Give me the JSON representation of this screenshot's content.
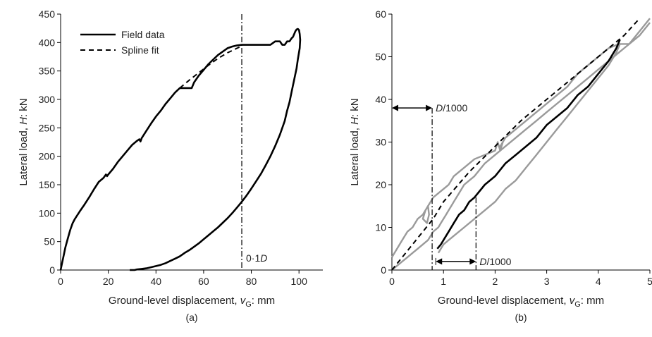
{
  "chart_data": [
    {
      "type": "line",
      "panel_label": "(a)",
      "xlabel_main": "Ground-level displacement, ",
      "xlabel_var": "v",
      "xlabel_sub": "G",
      "xlabel_unit": ": mm",
      "ylabel_main": "Lateral load, ",
      "ylabel_var": "H",
      "ylabel_unit": ": kN",
      "xlim": [
        0,
        110
      ],
      "ylim": [
        0,
        450
      ],
      "xticks": [
        "0",
        "20",
        "40",
        "60",
        "80",
        "100"
      ],
      "yticks": [
        "0",
        "50",
        "100",
        "150",
        "200",
        "250",
        "300",
        "350",
        "400",
        "450"
      ],
      "legend": {
        "placement": "top-left",
        "entries": [
          "Field data",
          "Spline fit"
        ]
      },
      "vline": {
        "x": 76,
        "label_main": "0·1",
        "label_var": "D"
      },
      "series": [
        {
          "name": "Field data",
          "style": "solid",
          "x": [
            0,
            0.5,
            1,
            1.5,
            2,
            3,
            4,
            5,
            6,
            8,
            10,
            12,
            14,
            16,
            18,
            19,
            19.5,
            20,
            22,
            24,
            26,
            28,
            30,
            32,
            33,
            33.5,
            34,
            36,
            38,
            40,
            42,
            44,
            46,
            48,
            50,
            52,
            54,
            55,
            56,
            58,
            60,
            62,
            64,
            66,
            68,
            70,
            72,
            74,
            76,
            78,
            80,
            82,
            84,
            86,
            88,
            90,
            92,
            93,
            94,
            95,
            96,
            96.5,
            97,
            97.5,
            98,
            98.5,
            99,
            99.5,
            100,
            100.3,
            100.5,
            100.3,
            99.5,
            99,
            98,
            97,
            96,
            95,
            94,
            92,
            90,
            88,
            86,
            84,
            82,
            80,
            78,
            76,
            74,
            72,
            70,
            68,
            66,
            64,
            62,
            60,
            58,
            56,
            54,
            52,
            50,
            48,
            46,
            44,
            42,
            40,
            38,
            36,
            34,
            32,
            31,
            30,
            29
          ],
          "y": [
            0,
            10,
            20,
            30,
            40,
            55,
            70,
            82,
            90,
            103,
            115,
            128,
            142,
            155,
            162,
            168,
            165,
            168,
            178,
            190,
            200,
            210,
            220,
            227,
            230,
            226,
            232,
            245,
            258,
            270,
            280,
            292,
            302,
            312,
            320,
            320,
            320,
            320,
            330,
            342,
            352,
            362,
            370,
            378,
            384,
            390,
            393,
            395,
            396,
            396,
            396,
            396,
            396,
            396,
            396,
            402,
            402,
            396,
            396,
            402,
            402,
            405,
            408,
            410,
            415,
            420,
            423,
            424,
            422,
            415,
            405,
            390,
            370,
            355,
            335,
            315,
            295,
            280,
            262,
            238,
            218,
            200,
            184,
            169,
            156,
            143,
            131,
            120,
            110,
            100,
            91,
            83,
            75,
            68,
            61,
            54,
            47,
            41,
            35,
            30,
            24,
            20,
            16,
            12,
            9,
            7,
            5,
            3,
            2,
            1,
            0,
            0,
            0
          ]
        },
        {
          "name": "Spline fit",
          "style": "dashed",
          "x": [
            50,
            54,
            58,
            62,
            66,
            70,
            74,
            76
          ],
          "y": [
            320,
            334,
            347,
            360,
            372,
            382,
            390,
            394
          ]
        }
      ]
    },
    {
      "type": "line",
      "panel_label": "(b)",
      "xlabel_main": "Ground-level displacement, ",
      "xlabel_var": "v",
      "xlabel_sub": "G",
      "xlabel_unit": ": mm",
      "ylabel_main": "Lateral load, ",
      "ylabel_var": "H",
      "ylabel_unit": ": kN",
      "xlim": [
        0,
        5
      ],
      "ylim": [
        0,
        60
      ],
      "xticks": [
        "0",
        "1",
        "2",
        "3",
        "4",
        "5"
      ],
      "yticks": [
        "0",
        "10",
        "20",
        "30",
        "40",
        "50",
        "60"
      ],
      "annotations": [
        {
          "var": "D",
          "text": "/1000",
          "from_x": 0,
          "to_x": 0.78,
          "y": 38
        },
        {
          "var": "D",
          "text": "/1000",
          "from_x": 0.85,
          "to_x": 1.63,
          "y": 2
        }
      ],
      "vlines": [
        {
          "x": 0.78,
          "y_top": 38
        },
        {
          "x": 1.63,
          "y_top": 17
        }
      ],
      "series": [
        {
          "style": "gray",
          "x": [
            0,
            0.1,
            0.2,
            0.3,
            0.4,
            0.5,
            0.6,
            0.65,
            0.7,
            0.72,
            0.68,
            0.6,
            0.65,
            0.7,
            0.75,
            0.8,
            0.9,
            1.0,
            1.1,
            1.2,
            1.4,
            1.6,
            1.8,
            2.0,
            2.05,
            2.1,
            2.15,
            2.1,
            2.2,
            2.4,
            2.6,
            2.8,
            3.0,
            3.2,
            3.4,
            3.6,
            3.8,
            4.0,
            4.2,
            4.4,
            4.6,
            4.8,
            5.0
          ],
          "y": [
            3,
            5,
            7,
            9,
            10,
            12,
            13,
            14,
            15,
            13,
            11,
            12,
            14,
            15,
            16,
            17,
            18,
            19,
            20,
            22,
            24,
            26,
            27,
            28,
            30,
            28,
            30,
            29,
            31,
            33,
            35,
            37,
            39,
            41,
            43,
            46,
            48,
            50,
            52,
            53,
            53,
            56,
            59
          ]
        },
        {
          "style": "gray",
          "x": [
            0,
            0.1,
            0.2,
            0.3,
            0.4,
            0.5,
            0.6,
            0.7,
            0.75,
            0.8,
            0.9,
            0.95,
            1.0,
            1.05,
            1.1,
            1.15,
            1.2,
            1.3,
            1.4,
            1.6,
            1.8,
            2.0,
            2.2,
            2.4,
            2.6,
            2.8,
            3.0,
            3.2,
            3.4,
            3.6,
            3.8,
            4.0,
            4.2,
            4.4,
            4.6,
            4.8,
            5.0
          ],
          "y": [
            0,
            1,
            2,
            3,
            4,
            5,
            6,
            7,
            8,
            9,
            10,
            11,
            12,
            13,
            14,
            15,
            16,
            18,
            20,
            22,
            25,
            27,
            29,
            31,
            33,
            35,
            37,
            39,
            41,
            43,
            45,
            47,
            49,
            51,
            53,
            55,
            58
          ]
        },
        {
          "style": "gray",
          "x": [
            4.42,
            4.35,
            4.2,
            4.0,
            3.8,
            3.6,
            3.4,
            3.2,
            3.0,
            2.8,
            2.6,
            2.4,
            2.2,
            2.0,
            1.8,
            1.6,
            1.4,
            1.2,
            1.1,
            1.0,
            0.95,
            0.9
          ],
          "y": [
            53,
            51,
            48,
            45,
            42,
            39,
            36,
            33,
            30,
            27,
            24,
            21,
            19,
            16,
            14,
            12,
            10,
            8,
            7,
            6,
            5,
            4
          ]
        },
        {
          "style": "black",
          "x": [
            0.88,
            0.95,
            1.0,
            1.1,
            1.2,
            1.3,
            1.4,
            1.5,
            1.6,
            1.8,
            2.0,
            2.2,
            2.4,
            2.6,
            2.8,
            3.0,
            3.2,
            3.4,
            3.6,
            3.8,
            4.0,
            4.2,
            4.35,
            4.42
          ],
          "y": [
            5,
            6,
            7,
            9,
            11,
            13,
            14,
            16,
            17,
            20,
            22,
            25,
            27,
            29,
            31,
            34,
            36,
            38,
            41,
            43,
            46,
            49,
            52,
            54
          ]
        },
        {
          "style": "dashed",
          "x": [
            0,
            0.1,
            0.2,
            0.4,
            0.6,
            0.8,
            1.0,
            1.5,
            2.0,
            2.5,
            3.0,
            3.5,
            4.0,
            4.5,
            4.8
          ],
          "y": [
            0,
            1.5,
            3,
            6,
            9,
            12,
            16,
            23,
            29,
            35,
            40,
            45,
            50,
            55,
            59
          ]
        }
      ]
    }
  ]
}
